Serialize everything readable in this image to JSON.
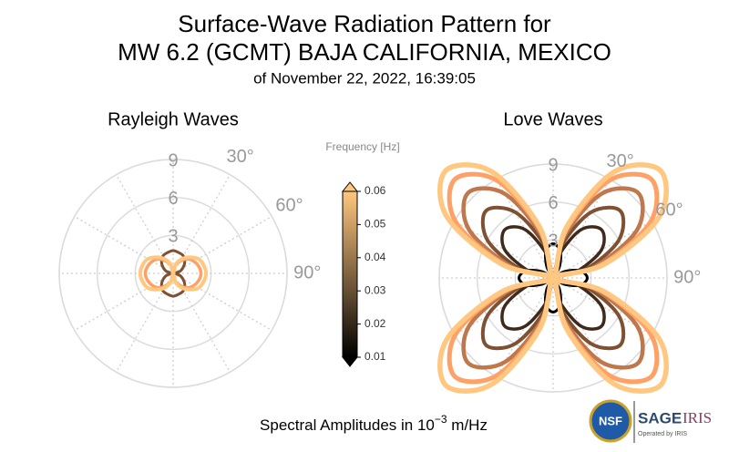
{
  "title": [
    "Surface-Wave Radiation Pattern for",
    "MW 6.2 (GCMT) BAJA CALIFORNIA, MEXICO"
  ],
  "subtitle": "of November 22, 2022, 16:39:05",
  "chart_data": [
    {
      "type": "polar",
      "title": "Rayleigh Waves",
      "rlim": [
        0,
        9
      ],
      "rticks": [
        3,
        6,
        9
      ],
      "thetagrid": [
        0,
        30,
        60,
        90,
        120,
        150,
        180,
        210,
        240,
        270,
        300,
        330
      ],
      "thetaticks": [
        {
          "value": 30,
          "label": "30°"
        },
        {
          "value": 60,
          "label": "60°"
        },
        {
          "value": 90,
          "label": "90°"
        }
      ],
      "theta": [
        0,
        15,
        30,
        45,
        60,
        75,
        90,
        105,
        120,
        135,
        150,
        165,
        180,
        195,
        210,
        225,
        240,
        255,
        270,
        285,
        300,
        315,
        330,
        345
      ],
      "series": [
        {
          "color": "#805033",
          "values": [
            1.8,
            1.7,
            1.6,
            1.3,
            0.9,
            0.5,
            0,
            0.5,
            0.9,
            1.3,
            1.6,
            1.7,
            1.8,
            1.7,
            1.6,
            1.3,
            0.9,
            0.5,
            0,
            0.5,
            0.9,
            1.3,
            1.6,
            1.7
          ]
        },
        {
          "color": "#ffa066",
          "values": [
            0,
            0.6,
            1.1,
            1.6,
            1.9,
            2.1,
            2.2,
            2.1,
            1.9,
            1.6,
            1.1,
            0.6,
            0,
            0.6,
            1.1,
            1.6,
            1.9,
            2.1,
            2.2,
            2.1,
            1.9,
            1.6,
            1.1,
            0.6
          ]
        },
        {
          "color": "#ffc77f",
          "values": [
            0,
            0.7,
            1.3,
            1.8,
            2.3,
            2.5,
            2.6,
            2.5,
            2.3,
            1.8,
            1.3,
            0.7,
            0,
            0.7,
            1.3,
            1.8,
            2.3,
            2.5,
            2.6,
            2.5,
            2.3,
            1.8,
            1.3,
            0.7
          ]
        }
      ]
    },
    {
      "type": "polar",
      "title": "Love Waves",
      "rlim": [
        0,
        9
      ],
      "rticks": [
        3,
        6,
        9
      ],
      "thetagrid": [
        0,
        30,
        60,
        90,
        120,
        150,
        180,
        210,
        240,
        270,
        300,
        330
      ],
      "thetaticks": [
        {
          "value": 30,
          "label": "30°"
        },
        {
          "value": 60,
          "label": "60°"
        },
        {
          "value": 90,
          "label": "90°"
        }
      ],
      "theta": [
        0,
        15,
        30,
        45,
        60,
        75,
        90,
        105,
        120,
        135,
        150,
        165,
        180,
        195,
        210,
        225,
        240,
        255,
        270,
        285,
        300,
        315,
        330,
        345
      ],
      "series": [
        {
          "color": "#000000",
          "values": [
            2.7,
            2.2,
            1.0,
            0,
            1.0,
            2.2,
            2.7,
            2.2,
            1.0,
            0,
            1.0,
            2.2,
            2.7,
            2.2,
            1.0,
            0,
            1.0,
            2.2,
            2.7,
            2.2,
            1.0,
            0,
            1.0,
            2.2
          ]
        },
        {
          "color": "#40281a",
          "values": [
            0,
            1.9,
            4.4,
            5.4,
            4.4,
            1.9,
            0,
            1.9,
            4.4,
            5.4,
            4.4,
            1.9,
            0,
            1.9,
            4.4,
            5.4,
            4.4,
            1.9,
            0,
            1.9,
            4.4,
            5.4,
            4.4,
            1.9
          ]
        },
        {
          "color": "#805033",
          "values": [
            0,
            2.7,
            6,
            7.5,
            6,
            2.7,
            0,
            2.7,
            6,
            7.5,
            6,
            2.7,
            0,
            2.7,
            6,
            7.5,
            6,
            2.7,
            0,
            2.7,
            6,
            7.5,
            6,
            2.7
          ]
        },
        {
          "color": "#bf774c",
          "values": [
            0,
            3.4,
            7.7,
            9.5,
            7.7,
            3.4,
            0,
            3.4,
            7.7,
            9.5,
            7.7,
            3.4,
            0,
            3.4,
            7.7,
            9.5,
            7.7,
            3.4,
            0,
            3.4,
            7.7,
            9.5,
            7.7,
            3.4
          ]
        },
        {
          "color": "#ffa066",
          "values": [
            0,
            3.9,
            8.9,
            11,
            8.9,
            3.9,
            0,
            3.9,
            8.9,
            11,
            8.9,
            3.9,
            0,
            3.9,
            8.9,
            11,
            8.9,
            3.9,
            0,
            3.9,
            8.9,
            11,
            8.9,
            3.9
          ]
        },
        {
          "color": "#ffc77f",
          "values": [
            0,
            4.2,
            9.7,
            12,
            9.7,
            4.2,
            0,
            4.2,
            9.7,
            12,
            9.7,
            4.2,
            0,
            4.2,
            9.7,
            12,
            9.7,
            4.2,
            0,
            4.2,
            9.7,
            12,
            9.7,
            4.2
          ]
        }
      ]
    }
  ],
  "colorbar": {
    "title": "Frequency [Hz]",
    "lim": [
      0.01,
      0.06
    ],
    "ticks": [
      0.01,
      0.02,
      0.03,
      0.04,
      0.05,
      0.06
    ],
    "colors": [
      "#000000",
      "#ffc77f"
    ]
  },
  "footer": {
    "text": "Spectral Amplitudes in 10",
    "sup": "−3",
    "after": " m/Hz"
  },
  "logos": {
    "nsf": "NSF",
    "sage": "SAGE",
    "iris": "IRIS",
    "operated": "Operated by IRIS"
  }
}
